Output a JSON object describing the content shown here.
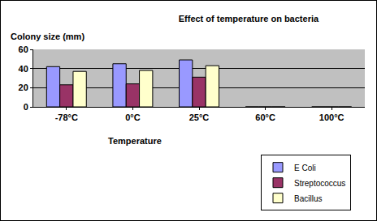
{
  "chart_data": {
    "type": "bar",
    "title": "Effect of temperature on bacteria",
    "x_label": "Temperature",
    "y_label": "Colony size (mm)",
    "categories": [
      "-78°C",
      "0°C",
      "25°C",
      "60°C",
      "100°C"
    ],
    "series": [
      {
        "name": "E Coli",
        "color": "#9999ff",
        "values": [
          42,
          45,
          49,
          0,
          0
        ]
      },
      {
        "name": "Streptococcus",
        "color": "#993366",
        "values": [
          23,
          24,
          31,
          0,
          0
        ]
      },
      {
        "name": "Bacillus",
        "color": "#ffffcc",
        "values": [
          37,
          38,
          43,
          0,
          0
        ]
      }
    ],
    "ylim": [
      0,
      60
    ],
    "yticks": [
      0,
      20,
      40,
      60
    ],
    "grid": true,
    "legend": "bottom-right"
  }
}
